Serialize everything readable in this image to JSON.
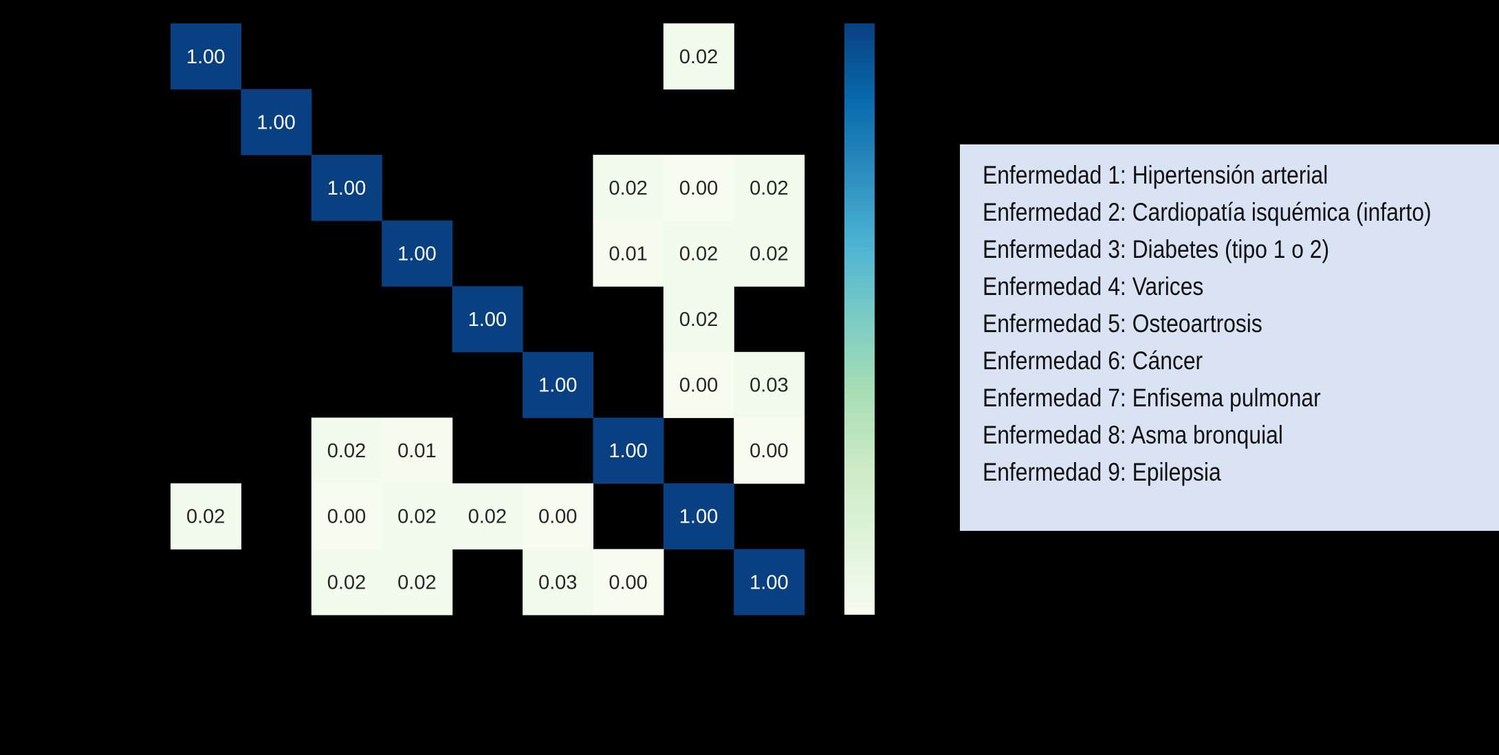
{
  "chart_data": {
    "type": "heatmap",
    "rows": 9,
    "cols": 9,
    "colorscale": {
      "name": "GnBu",
      "vmin": 0,
      "vmax": 1,
      "stops": [
        "#f7fcf0",
        "#e0f3db",
        "#ccebc5",
        "#a8ddb5",
        "#7bccc4",
        "#4eb3d3",
        "#2b8cbe",
        "#0868ac",
        "#084081"
      ]
    },
    "values": [
      [
        1.0,
        null,
        null,
        null,
        null,
        null,
        null,
        0.02,
        null
      ],
      [
        null,
        1.0,
        null,
        null,
        null,
        null,
        null,
        null,
        null
      ],
      [
        null,
        null,
        1.0,
        null,
        null,
        null,
        0.02,
        0.0,
        0.02
      ],
      [
        null,
        null,
        null,
        1.0,
        null,
        null,
        0.01,
        0.02,
        0.02
      ],
      [
        null,
        null,
        null,
        null,
        1.0,
        null,
        null,
        0.02,
        null
      ],
      [
        null,
        null,
        null,
        null,
        null,
        1.0,
        null,
        0.0,
        0.03
      ],
      [
        null,
        null,
        0.02,
        0.01,
        null,
        null,
        1.0,
        null,
        0.0
      ],
      [
        0.02,
        null,
        0.0,
        0.02,
        0.02,
        0.0,
        null,
        1.0,
        null
      ],
      [
        null,
        null,
        0.02,
        0.02,
        null,
        0.03,
        0.0,
        null,
        1.0
      ]
    ],
    "cell_labels": [
      [
        "1.00",
        "",
        "",
        "",
        "",
        "",
        "",
        "0.02",
        ""
      ],
      [
        "",
        "1.00",
        "",
        "",
        "",
        "",
        "",
        "",
        ""
      ],
      [
        "",
        "",
        "1.00",
        "",
        "",
        "",
        "0.02",
        "0.00",
        "0.02"
      ],
      [
        "",
        "",
        "",
        "1.00",
        "",
        "",
        "0.01",
        "0.02",
        "0.02"
      ],
      [
        "",
        "",
        "",
        "",
        "1.00",
        "",
        "",
        "0.02",
        ""
      ],
      [
        "",
        "",
        "",
        "",
        "",
        "1.00",
        "",
        "0.00",
        "0.03"
      ],
      [
        "",
        "",
        "0.02",
        "0.01",
        "",
        "",
        "1.00",
        "",
        "0.00"
      ],
      [
        "0.02",
        "",
        "0.00",
        "0.02",
        "0.02",
        "0.00",
        "",
        "1.00",
        ""
      ],
      [
        "",
        "",
        "0.02",
        "0.02",
        "",
        "0.03",
        "0.00",
        "",
        "1.00"
      ]
    ],
    "legend": {
      "items": [
        "Enfermedad 1: Hipertensión arterial",
        "Enfermedad 2: Cardiopatía isquémica (infarto)",
        "Enfermedad 3: Diabetes (tipo 1 o 2)",
        "Enfermedad 4: Varices",
        "Enfermedad 5: Osteoartrosis",
        "Enfermedad 6: Cáncer",
        "Enfermedad 7: Enfisema pulmonar",
        "Enfermedad 8: Asma bronquial",
        "Enfermedad 9: Epilepsia"
      ],
      "background": "#d9e3f3"
    },
    "background": "#000000"
  }
}
